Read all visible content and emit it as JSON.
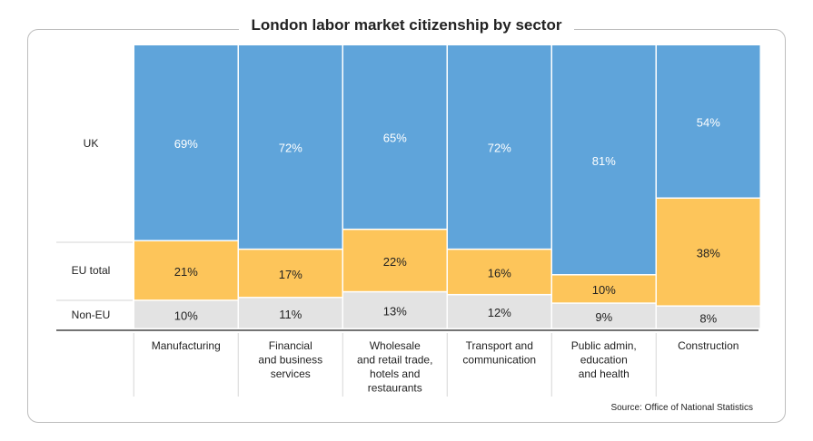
{
  "chart_data": {
    "type": "bar",
    "stacked": true,
    "variable_width": true,
    "title": "London labor market citizenship by sector",
    "source": "Source: Office of National Statistics",
    "categories": [
      [
        "Manufacturing"
      ],
      [
        "Financial",
        "and business",
        "services"
      ],
      [
        "Wholesale",
        "and retail trade,",
        "hotels and",
        "restaurants"
      ],
      [
        "Transport and",
        "communication"
      ],
      [
        "Public admin,",
        "education",
        "and health"
      ],
      [
        "Construction"
      ]
    ],
    "series": [
      {
        "name": "Non-EU",
        "color": "#e3e3e3",
        "values": [
          10,
          11,
          13,
          12,
          9,
          8
        ],
        "labels": [
          "10%",
          "11%",
          "13%",
          "12%",
          "9%",
          "8%"
        ]
      },
      {
        "name": "EU total",
        "color": "#fdc55a",
        "values": [
          21,
          17,
          22,
          16,
          10,
          38
        ],
        "labels": [
          "21%",
          "17%",
          "22%",
          "16%",
          "10%",
          "38%"
        ]
      },
      {
        "name": "UK",
        "color": "#5fa4da",
        "values": [
          69,
          72,
          65,
          72,
          81,
          54
        ],
        "labels": [
          "69%",
          "72%",
          "65%",
          "72%",
          "81%",
          "54%"
        ]
      }
    ],
    "row_labels": [
      "UK",
      "EU total",
      "Non-EU"
    ],
    "ylim": [
      0,
      100
    ]
  }
}
